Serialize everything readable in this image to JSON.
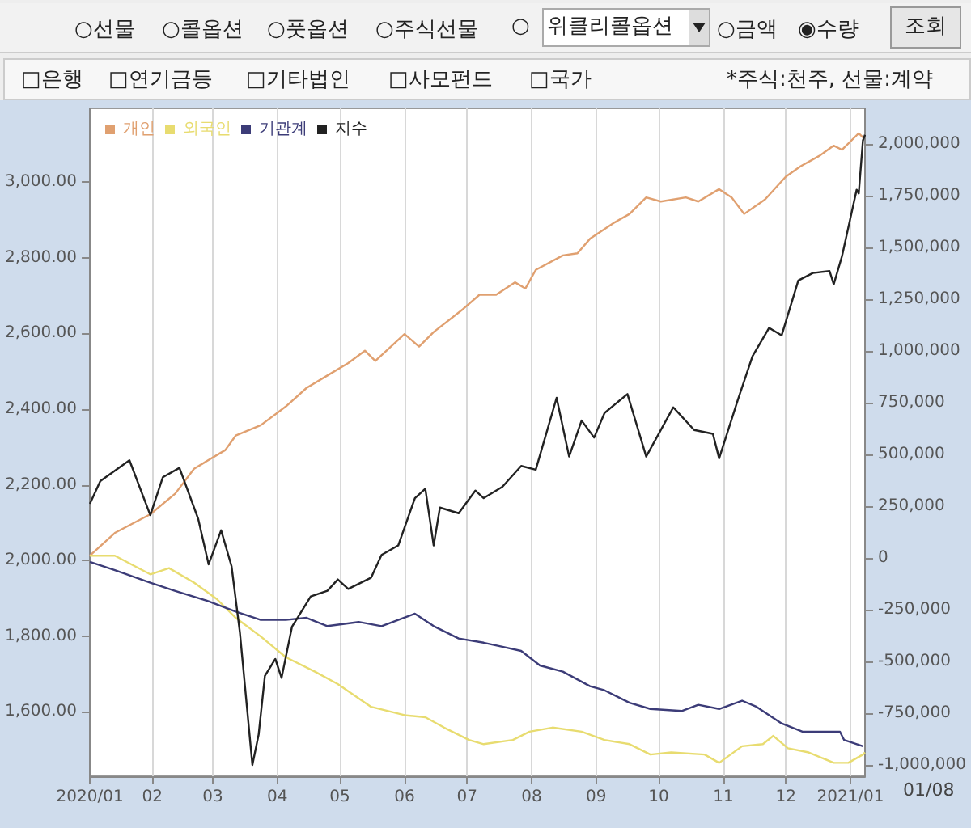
{
  "chart_data": {
    "type": "line",
    "annotations": [
      "○선물",
      "○콜옵션",
      "○풋옵션",
      "○주식선물",
      "○",
      "위클리콜옵션",
      "○금액",
      "◉수량",
      "조회",
      "□은행",
      "□연기금등",
      "□기타법인",
      "□사모펀드",
      "□국가",
      "*주식:천주, 선물:계약",
      "01/08"
    ],
    "series": [
      {
        "name": "개인",
        "color": "#e0a070",
        "axis": "y2",
        "x": [
          "2020-01-02",
          "2020-01-14",
          "2020-01-31",
          "2020-02-12",
          "2020-02-21",
          "2020-03-07",
          "2020-03-12",
          "2020-03-24",
          "2020-04-05",
          "2020-04-15",
          "2020-04-25",
          "2020-05-05",
          "2020-05-13",
          "2020-05-18",
          "2020-06-01",
          "2020-06-08",
          "2020-06-15",
          "2020-06-29",
          "2020-07-07",
          "2020-07-15",
          "2020-07-24",
          "2020-07-29",
          "2020-08-03",
          "2020-08-16",
          "2020-08-23",
          "2020-08-29",
          "2020-09-10",
          "2020-09-17",
          "2020-09-25",
          "2020-10-02",
          "2020-10-14",
          "2020-10-20",
          "2020-10-30",
          "2020-11-05",
          "2020-11-11",
          "2020-11-21",
          "2020-12-01",
          "2020-12-08",
          "2020-12-17",
          "2020-12-24",
          "2020-12-28",
          "2021-01-05",
          "2021-01-07"
        ],
        "values": [
          10000,
          120000,
          210000,
          310000,
          430000,
          520000,
          590000,
          640000,
          730000,
          820000,
          880000,
          940000,
          1000000,
          950000,
          1080000,
          1020000,
          1090000,
          1200000,
          1270000,
          1270000,
          1330000,
          1300000,
          1390000,
          1460000,
          1470000,
          1540000,
          1620000,
          1660000,
          1740000,
          1720000,
          1740000,
          1720000,
          1780000,
          1740000,
          1660000,
          1730000,
          1840000,
          1890000,
          1940000,
          1990000,
          1970000,
          2050000,
          2030000
        ]
      },
      {
        "name": "외국인",
        "color": "#e8dc70",
        "axis": "y2",
        "x": [
          "2020-01-02",
          "2020-01-14",
          "2020-01-31",
          "2020-02-09",
          "2020-02-21",
          "2020-03-03",
          "2020-03-12",
          "2020-03-24",
          "2020-04-05",
          "2020-04-19",
          "2020-04-30",
          "2020-05-16",
          "2020-06-01",
          "2020-06-11",
          "2020-06-20",
          "2020-07-02",
          "2020-07-09",
          "2020-07-23",
          "2020-07-31",
          "2020-08-11",
          "2020-08-25",
          "2020-09-05",
          "2020-09-17",
          "2020-09-27",
          "2020-10-07",
          "2020-10-23",
          "2020-10-30",
          "2020-11-10",
          "2020-11-20",
          "2020-11-25",
          "2020-12-02",
          "2020-12-12",
          "2020-12-24",
          "2020-12-31",
          "2021-01-07",
          "2021-01-08"
        ],
        "values": [
          10000,
          10000,
          -80000,
          -50000,
          -120000,
          -200000,
          -290000,
          -380000,
          -480000,
          -550000,
          -610000,
          -720000,
          -760000,
          -770000,
          -820000,
          -880000,
          -900000,
          -880000,
          -840000,
          -820000,
          -840000,
          -880000,
          -900000,
          -950000,
          -940000,
          -950000,
          -990000,
          -910000,
          -900000,
          -860000,
          -920000,
          -940000,
          -990000,
          -990000,
          -950000,
          -940000
        ]
      },
      {
        "name": "기관계",
        "color": "#3c3c78",
        "axis": "y2",
        "x": [
          "2020-01-02",
          "2020-01-14",
          "2020-01-31",
          "2020-02-12",
          "2020-02-28",
          "2020-03-12",
          "2020-03-24",
          "2020-04-05",
          "2020-04-15",
          "2020-04-25",
          "2020-05-10",
          "2020-05-21",
          "2020-06-06",
          "2020-06-15",
          "2020-06-27",
          "2020-07-09",
          "2020-07-18",
          "2020-07-27",
          "2020-08-05",
          "2020-08-16",
          "2020-08-29",
          "2020-09-05",
          "2020-09-17",
          "2020-09-27",
          "2020-10-12",
          "2020-10-20",
          "2020-10-30",
          "2020-11-10",
          "2020-11-17",
          "2020-11-29",
          "2020-12-09",
          "2020-12-19",
          "2020-12-27",
          "2020-12-29",
          "2021-01-07"
        ],
        "values": [
          -20000,
          -60000,
          -120000,
          -160000,
          -210000,
          -260000,
          -300000,
          -300000,
          -290000,
          -330000,
          -310000,
          -330000,
          -270000,
          -330000,
          -390000,
          -410000,
          -430000,
          -450000,
          -520000,
          -550000,
          -620000,
          -640000,
          -700000,
          -730000,
          -740000,
          -710000,
          -730000,
          -690000,
          -720000,
          -800000,
          -840000,
          -840000,
          -840000,
          -880000,
          -910000
        ]
      },
      {
        "name": "지수",
        "color": "#222222",
        "x": [
          "2020-01-02",
          "2020-01-07",
          "2020-01-21",
          "2020-01-31",
          "2020-02-06",
          "2020-02-14",
          "2020-02-23",
          "2020-02-28",
          "2020-03-05",
          "2020-03-10",
          "2020-03-14",
          "2020-03-20",
          "2020-03-23",
          "2020-03-26",
          "2020-03-31",
          "2020-04-03",
          "2020-04-08",
          "2020-04-17",
          "2020-04-25",
          "2020-04-30",
          "2020-05-05",
          "2020-05-16",
          "2020-05-21",
          "2020-05-29",
          "2020-06-06",
          "2020-06-11",
          "2020-06-15",
          "2020-06-18",
          "2020-06-27",
          "2020-07-05",
          "2020-07-09",
          "2020-07-18",
          "2020-07-27",
          "2020-08-03",
          "2020-08-13",
          "2020-08-19",
          "2020-08-25",
          "2020-08-31",
          "2020-09-05",
          "2020-09-16",
          "2020-09-25",
          "2020-10-08",
          "2020-10-18",
          "2020-10-27",
          "2020-10-30",
          "2020-11-08",
          "2020-11-15",
          "2020-11-23",
          "2020-11-29",
          "2020-12-07",
          "2020-12-14",
          "2020-12-22",
          "2020-12-24",
          "2020-12-28",
          "2021-01-04",
          "2021-01-05",
          "2021-01-07",
          "2021-01-08"
        ],
        "values": [
          2150,
          2210,
          2265,
          2120,
          2220,
          2245,
          2110,
          1990,
          2080,
          1985,
          1810,
          1460,
          1540,
          1695,
          1740,
          1690,
          1825,
          1905,
          1920,
          1950,
          1925,
          1955,
          2015,
          2040,
          2165,
          2190,
          2040,
          2140,
          2125,
          2185,
          2165,
          2195,
          2250,
          2240,
          2430,
          2275,
          2370,
          2325,
          2390,
          2440,
          2275,
          2405,
          2345,
          2335,
          2270,
          2425,
          2540,
          2615,
          2595,
          2740,
          2760,
          2765,
          2730,
          2805,
          2980,
          2970,
          3110,
          3125
        ]
      }
    ],
    "xlim": [
      "2020-01-02",
      "2021-01-08"
    ],
    "xticks": [
      {
        "value": "2020-01-02",
        "label": "2020/01"
      },
      {
        "value": "2020-02-01",
        "label": "02"
      },
      {
        "value": "2020-03-01",
        "label": "03"
      },
      {
        "value": "2020-04-01",
        "label": "04"
      },
      {
        "value": "2020-05-01",
        "label": "05"
      },
      {
        "value": "2020-06-01",
        "label": "06"
      },
      {
        "value": "2020-07-01",
        "label": "07"
      },
      {
        "value": "2020-08-01",
        "label": "08"
      },
      {
        "value": "2020-09-01",
        "label": "09"
      },
      {
        "value": "2020-10-01",
        "label": "10"
      },
      {
        "value": "2020-11-01",
        "label": "11"
      },
      {
        "value": "2020-12-01",
        "label": "12"
      },
      {
        "value": "2021-01-01",
        "label": "2021/01"
      }
    ],
    "ylim": [
      1430,
      3195
    ],
    "yticks": [
      {
        "value": 1600,
        "label": "1,600.00"
      },
      {
        "value": 1800,
        "label": "1,800.00"
      },
      {
        "value": 2000,
        "label": "2,000.00"
      },
      {
        "value": 2200,
        "label": "2,200.00"
      },
      {
        "value": 2400,
        "label": "2,400.00"
      },
      {
        "value": 2600,
        "label": "2,600.00"
      },
      {
        "value": 2800,
        "label": "2,800.00"
      },
      {
        "value": 3000,
        "label": "3,000.00"
      }
    ],
    "y2lim": [
      -1055000,
      2170000
    ],
    "y2ticks": [
      {
        "value": -1000000,
        "label": "-1,000,000"
      },
      {
        "value": -750000,
        "label": "-750,000"
      },
      {
        "value": -500000,
        "label": "-500,000"
      },
      {
        "value": -250000,
        "label": "-250,000"
      },
      0,
      {
        "value": 250000,
        "label": "250,000"
      },
      {
        "value": 500000,
        "label": "500,000"
      },
      {
        "value": 750000,
        "label": "750,000"
      },
      {
        "value": 1000000,
        "label": "1,000,000"
      },
      {
        "value": 1250000,
        "label": "1,250,000"
      },
      {
        "value": 1500000,
        "label": "1,500,000"
      },
      {
        "value": 1750000,
        "label": "1,750,000"
      },
      {
        "value": 2000000,
        "label": "2,000,000"
      }
    ],
    "grid": "x",
    "legend": "top left",
    "marker": "none",
    "line_style": "solid"
  }
}
